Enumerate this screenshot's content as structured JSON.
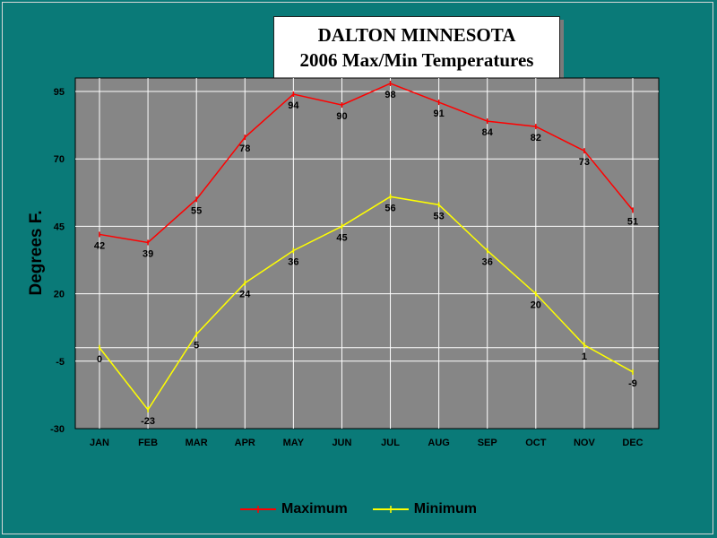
{
  "chart_data": {
    "type": "line",
    "title_line1": "DALTON MINNESOTA",
    "title_line2": "2006 Max/Min Temperatures",
    "ylabel": "Degrees F.",
    "categories": [
      "JAN",
      "FEB",
      "MAR",
      "APR",
      "MAY",
      "JUN",
      "JUL",
      "AUG",
      "SEP",
      "OCT",
      "NOV",
      "DEC"
    ],
    "yticks": [
      -30,
      -5,
      20,
      45,
      70,
      95
    ],
    "ylim": [
      -30,
      100
    ],
    "grid": true,
    "series": [
      {
        "name": "Maximum",
        "color": "#ff0000",
        "values": [
          42,
          39,
          55,
          78,
          94,
          90,
          98,
          91,
          84,
          82,
          73,
          51
        ]
      },
      {
        "name": "Minimum",
        "color": "#ffff00",
        "values": [
          0,
          -23,
          5,
          24,
          36,
          45,
          56,
          53,
          36,
          20,
          1,
          -9
        ]
      }
    ]
  }
}
